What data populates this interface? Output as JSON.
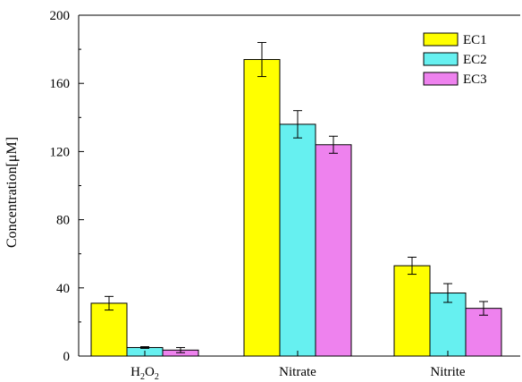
{
  "chart_data": {
    "type": "bar",
    "title": "",
    "xlabel": "",
    "ylabel": "Concentration[μM]",
    "ylim": [
      0,
      200
    ],
    "yticks": [
      0,
      40,
      80,
      120,
      160,
      200
    ],
    "categories": [
      "H2O2",
      "Nitrate",
      "Nitrite"
    ],
    "series": [
      {
        "name": "EC1",
        "color": "#ffff00",
        "values": [
          31,
          174,
          53
        ],
        "errors": [
          4,
          10,
          5
        ]
      },
      {
        "name": "EC2",
        "color": "#66f0f0",
        "values": [
          5,
          136,
          37
        ],
        "errors": [
          0.5,
          8,
          5.5
        ]
      },
      {
        "name": "EC3",
        "color": "#ee82ee",
        "values": [
          3.5,
          124,
          28
        ],
        "errors": [
          1.5,
          5,
          4
        ]
      }
    ],
    "legend_position": "top-right",
    "grid": false
  }
}
